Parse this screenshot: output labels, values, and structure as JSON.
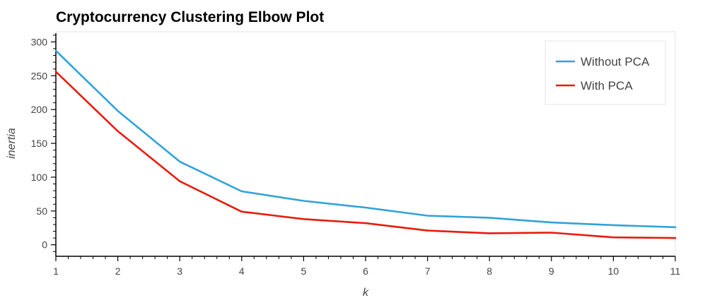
{
  "chart_data": {
    "type": "line",
    "title": "Cryptocurrency Clustering Elbow Plot",
    "xlabel": "k",
    "ylabel": "inertia",
    "x": [
      1,
      2,
      3,
      4,
      5,
      6,
      7,
      8,
      9,
      10,
      11
    ],
    "xlim": [
      1,
      11
    ],
    "ylim": [
      -17,
      315
    ],
    "xticks": [
      1,
      2,
      3,
      4,
      5,
      6,
      7,
      8,
      9,
      10,
      11
    ],
    "yticks": [
      0,
      50,
      100,
      150,
      200,
      250,
      300
    ],
    "grid": false,
    "legend_position": "top-right",
    "series": [
      {
        "name": "Without PCA",
        "color": "#30a2da",
        "values": [
          287,
          198,
          123,
          79,
          65,
          55,
          43,
          40,
          33,
          29,
          26
        ]
      },
      {
        "name": "With PCA",
        "color": "#e81b0f",
        "values": [
          256,
          168,
          94,
          49,
          38,
          32,
          21,
          17,
          18,
          11,
          10
        ]
      }
    ]
  }
}
